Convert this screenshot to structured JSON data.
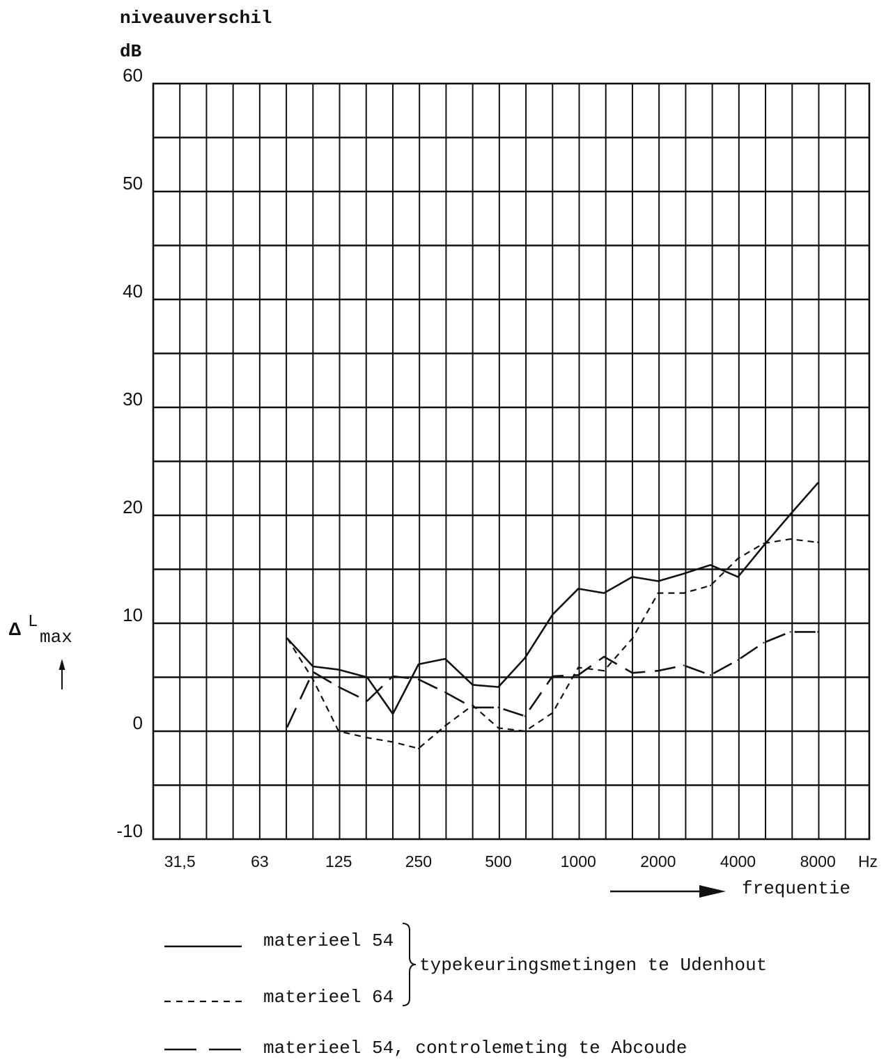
{
  "chart_data": {
    "type": "line",
    "ylabel": "niveauverschil",
    "yunit": "dB",
    "ysymbol": {
      "delta": "Δ",
      "letter": "L",
      "sub": "max"
    },
    "xlabel": "frequentie",
    "xunit": "Hz",
    "x_scale": "log",
    "xlim": [
      25,
      12500
    ],
    "ylim": [
      -10,
      60
    ],
    "grid": true,
    "y_ticks": [
      60,
      50,
      40,
      30,
      20,
      10,
      0,
      -10
    ],
    "x_ticks": [
      31.5,
      63,
      125,
      250,
      500,
      1000,
      2000,
      4000,
      8000
    ],
    "x_tick_labels": [
      "31,5",
      "63",
      "125",
      "250",
      "500",
      "1000",
      "2000",
      "4000",
      "8000"
    ],
    "x": [
      80,
      100,
      125,
      160,
      200,
      250,
      315,
      400,
      500,
      630,
      800,
      1000,
      1250,
      1600,
      2000,
      2500,
      3150,
      4000,
      5000,
      6300,
      8000
    ],
    "series": [
      {
        "name": "materieel 54",
        "values": [
          8.6,
          6.0,
          5.7,
          5.0,
          1.6,
          6.2,
          6.7,
          4.3,
          4.1,
          6.8,
          10.8,
          13.2,
          12.8,
          14.3,
          13.9,
          14.6,
          15.4,
          14.3,
          17.2,
          20.1,
          23.0
        ]
      },
      {
        "name": "materieel 64",
        "values": [
          8.6,
          4.8,
          0.0,
          -0.6,
          -1.0,
          -1.6,
          0.5,
          2.4,
          0.3,
          0.0,
          1.7,
          5.9,
          5.6,
          8.6,
          12.8,
          12.8,
          13.5,
          16.0,
          17.4,
          17.8,
          17.5
        ]
      },
      {
        "name": "materieel 54, controlemeting te Abcoude",
        "values": [
          0.4,
          5.5,
          4.1,
          2.8,
          5.1,
          4.8,
          3.6,
          2.2,
          2.2,
          1.4,
          5.1,
          5.2,
          6.9,
          5.4,
          5.6,
          6.1,
          5.2,
          6.6,
          8.2,
          9.2,
          9.2
        ]
      }
    ],
    "legend": {
      "position": "bottom",
      "group_label": "typekeuringsmetingen te Udenhout"
    },
    "colors": {
      "ink": "#111111",
      "background": "#ffffff"
    }
  }
}
